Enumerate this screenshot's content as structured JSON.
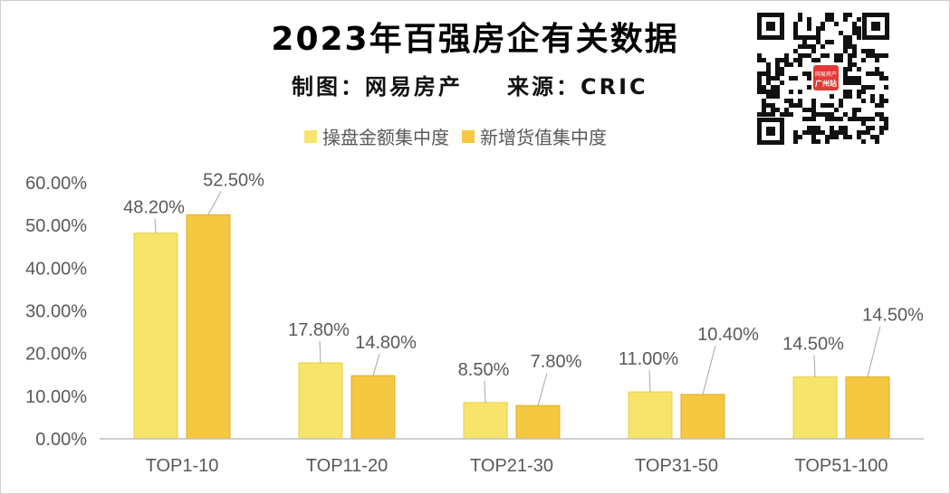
{
  "header": {
    "title": "2023年百强房企有关数据",
    "credit": "制图：网易房产",
    "source": "来源：CRIC"
  },
  "qr_badge": {
    "line1": "网易房产",
    "line2": "广州站"
  },
  "colors": {
    "series1": "#F7E46B",
    "series2": "#F5C842",
    "accent": "#E53935"
  },
  "chart_data": {
    "type": "bar",
    "categories": [
      "TOP1-10",
      "TOP11-20",
      "TOP21-30",
      "TOP31-50",
      "TOP51-100"
    ],
    "series": [
      {
        "name": "操盘金额集中度",
        "values": [
          48.2,
          17.8,
          8.5,
          11.0,
          14.5
        ],
        "labels": [
          "48.20%",
          "17.80%",
          "8.50%",
          "11.00%",
          "14.50%"
        ]
      },
      {
        "name": "新增货值集中度",
        "values": [
          52.5,
          14.8,
          7.8,
          10.4,
          14.5
        ],
        "labels": [
          "52.50%",
          "14.80%",
          "7.80%",
          "10.40%",
          "14.50%"
        ]
      }
    ],
    "ylim": [
      0,
      60
    ],
    "yticks": [
      "0.00%",
      "10.00%",
      "20.00%",
      "30.00%",
      "40.00%",
      "50.00%",
      "60.00%"
    ],
    "legend": "top",
    "grid": false
  }
}
